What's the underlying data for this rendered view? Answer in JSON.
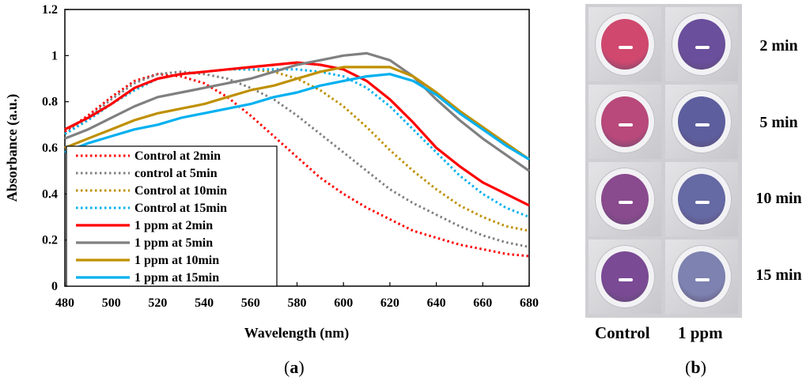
{
  "chart_data": {
    "type": "line",
    "xlabel": "Wavelength (nm)",
    "ylabel": "Absorbance (a.u.)",
    "xlim": [
      480,
      680
    ],
    "ylim": [
      0,
      1.2
    ],
    "x_ticks": [
      "480",
      "500",
      "520",
      "540",
      "560",
      "580",
      "600",
      "620",
      "640",
      "660",
      "680"
    ],
    "y_ticks": [
      "0",
      "0.2",
      "0.4",
      "0.6",
      "0.8",
      "1",
      "1.2"
    ],
    "grid": false,
    "legend_position": "lower-left",
    "x": [
      480,
      490,
      500,
      510,
      520,
      530,
      540,
      550,
      560,
      570,
      580,
      590,
      600,
      610,
      620,
      630,
      640,
      650,
      660,
      670,
      680
    ],
    "series": [
      {
        "name": "Control at 2min",
        "style": "dotted",
        "color": "#ff0000",
        "values": [
          0.67,
          0.74,
          0.82,
          0.89,
          0.92,
          0.91,
          0.88,
          0.82,
          0.74,
          0.65,
          0.56,
          0.47,
          0.4,
          0.34,
          0.29,
          0.24,
          0.21,
          0.18,
          0.16,
          0.14,
          0.13
        ]
      },
      {
        "name": "control at 5min",
        "style": "dotted",
        "color": "#808080",
        "values": [
          0.66,
          0.73,
          0.81,
          0.88,
          0.92,
          0.93,
          0.92,
          0.9,
          0.86,
          0.81,
          0.74,
          0.66,
          0.58,
          0.5,
          0.42,
          0.36,
          0.31,
          0.26,
          0.22,
          0.19,
          0.17
        ]
      },
      {
        "name": "Control at 10min",
        "style": "dotted",
        "color": "#bf9000",
        "values": [
          0.66,
          0.72,
          0.79,
          0.85,
          0.9,
          0.92,
          0.93,
          0.94,
          0.94,
          0.93,
          0.9,
          0.85,
          0.78,
          0.69,
          0.59,
          0.5,
          0.42,
          0.35,
          0.3,
          0.26,
          0.24
        ]
      },
      {
        "name": "Control at 15min",
        "style": "dotted",
        "color": "#00b0f0",
        "values": [
          0.66,
          0.72,
          0.79,
          0.85,
          0.9,
          0.92,
          0.93,
          0.94,
          0.94,
          0.94,
          0.94,
          0.93,
          0.91,
          0.86,
          0.78,
          0.68,
          0.58,
          0.48,
          0.4,
          0.34,
          0.3
        ]
      },
      {
        "name": "1 ppm at 2min",
        "style": "solid",
        "color": "#ff0000",
        "values": [
          0.68,
          0.73,
          0.79,
          0.86,
          0.9,
          0.92,
          0.93,
          0.94,
          0.95,
          0.96,
          0.97,
          0.96,
          0.94,
          0.89,
          0.81,
          0.71,
          0.6,
          0.52,
          0.45,
          0.4,
          0.35
        ]
      },
      {
        "name": "1 ppm at 5min",
        "style": "solid",
        "color": "#808080",
        "values": [
          0.64,
          0.68,
          0.73,
          0.78,
          0.82,
          0.84,
          0.86,
          0.88,
          0.9,
          0.93,
          0.96,
          0.98,
          1.0,
          1.01,
          0.98,
          0.91,
          0.81,
          0.72,
          0.64,
          0.57,
          0.5
        ]
      },
      {
        "name": "1 ppm at 10min",
        "style": "solid",
        "color": "#bf9000",
        "values": [
          0.6,
          0.64,
          0.68,
          0.72,
          0.75,
          0.77,
          0.79,
          0.82,
          0.85,
          0.87,
          0.9,
          0.93,
          0.95,
          0.95,
          0.95,
          0.91,
          0.84,
          0.76,
          0.69,
          0.62,
          0.55
        ]
      },
      {
        "name": "1 ppm at 15min",
        "style": "solid",
        "color": "#00b0f0",
        "values": [
          0.58,
          0.62,
          0.65,
          0.68,
          0.7,
          0.73,
          0.75,
          0.77,
          0.79,
          0.82,
          0.84,
          0.87,
          0.89,
          0.91,
          0.92,
          0.89,
          0.83,
          0.75,
          0.68,
          0.61,
          0.55
        ]
      }
    ]
  },
  "panel_a_label": "a",
  "panel_b_label": "b",
  "photo_panel": {
    "time_labels": [
      "2 min",
      "5 min",
      "10 min",
      "15 min"
    ],
    "column_labels": [
      "Control",
      "1 ppm"
    ],
    "control_colors": [
      "#d0486e",
      "#b8497a",
      "#8a4a8e",
      "#7a4a94"
    ],
    "ppm_colors": [
      "#6a4f9c",
      "#5d5e9e",
      "#6569a4",
      "#7d82b0"
    ]
  }
}
